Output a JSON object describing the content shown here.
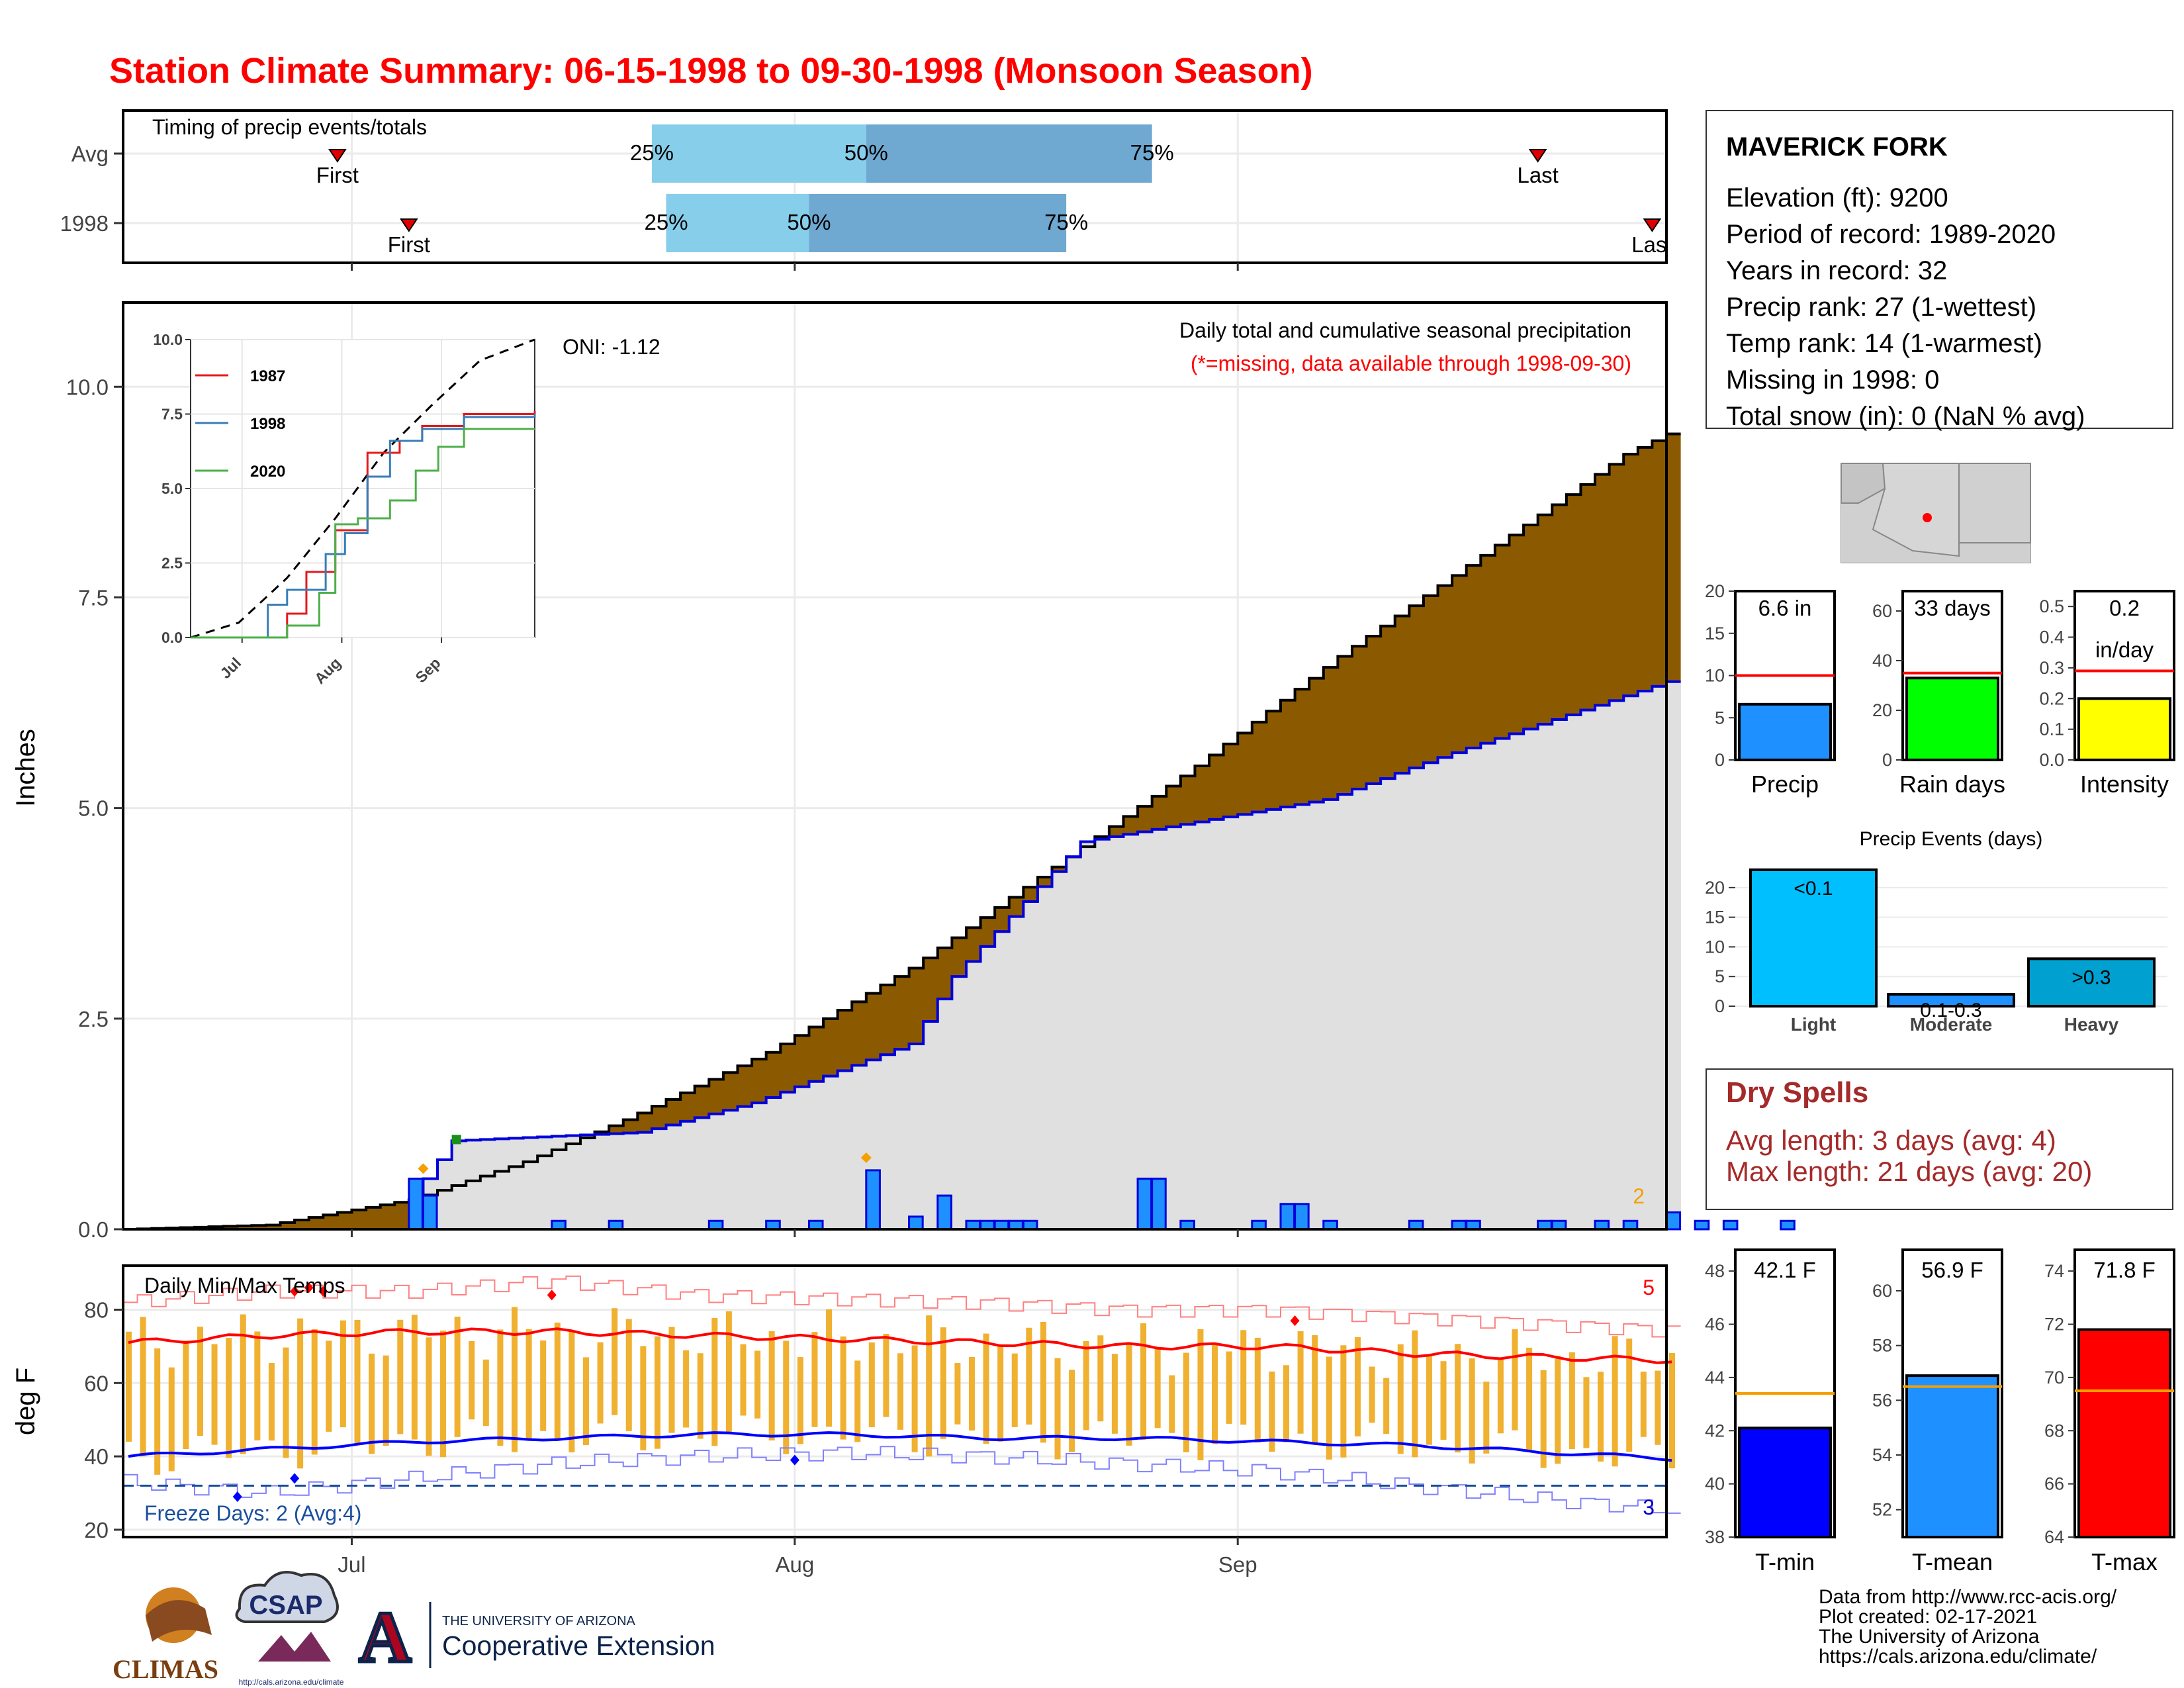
{
  "title": "Station Climate Summary: 06-15-1998 to 09-30-1998 (Monsoon Season)",
  "colors": {
    "title": "#ff0000",
    "brown": "#8b5a00",
    "gray_fill": "#e0e0e0",
    "blue_line": "#0000dd",
    "bar_blue": "#1e90ff",
    "light_blue": "#87ceeb",
    "mid_blue": "#6fa8d0",
    "temp_orange": "#f0b030",
    "max_red": "#ff0000",
    "min_blue": "#0000ff",
    "rain_green": "#00ff00",
    "intensity_yellow": "#ffff00",
    "dry_red": "#a52a2a",
    "light_bar": "#00bfff",
    "heavy_bar": "#00a0d0"
  },
  "timing": {
    "label": "Timing of precip events/totals",
    "rows": [
      {
        "name": "Avg",
        "first": "First",
        "last": "Last",
        "p25": "25%",
        "p50": "50%",
        "p75": "75%",
        "first_date": "1998-06-30",
        "last_date": "1998-09-22",
        "d25": "1998-07-22",
        "d50": "1998-08-06",
        "d75": "1998-08-26"
      },
      {
        "name": "1998",
        "first": "First",
        "last": "Last",
        "p25": "25%",
        "p50": "50%",
        "p75": "75%",
        "first_date": "1998-07-05",
        "last_date": "1998-09-30",
        "d25": "1998-07-23",
        "d50": "1998-08-02",
        "d75": "1998-08-20"
      }
    ]
  },
  "precip_panel": {
    "ylabel": "Inches",
    "oni": "ONI: -1.12",
    "caption": "Daily total and cumulative seasonal precipitation",
    "caption2": "(*=missing, data available through 1998-09-30)",
    "count_label": "2",
    "yticks": [
      "0.0",
      "2.5",
      "5.0",
      "7.5",
      "10.0"
    ]
  },
  "inset": {
    "series": [
      {
        "name": "1987",
        "color": "#e41a1c"
      },
      {
        "name": "1998",
        "color": "#377eb8"
      },
      {
        "name": "2020",
        "color": "#4daf4a"
      }
    ],
    "yticks": [
      "0.0",
      "2.5",
      "5.0",
      "7.5",
      "10.0"
    ],
    "xticks": [
      "Jul",
      "Aug",
      "Sep"
    ]
  },
  "temp_panel": {
    "ylabel": "deg F",
    "title": "Daily Min/Max Temps",
    "freeze": "Freeze Days: 2 (Avg:4)",
    "count_hot": "5",
    "count_cold": "3",
    "yticks": [
      "20",
      "40",
      "60",
      "80"
    ]
  },
  "xaxis": {
    "ticks": [
      "Jul",
      "Aug",
      "Sep"
    ]
  },
  "station": {
    "name": "MAVERICK FORK",
    "lines": [
      "Elevation (ft): 9200",
      "Period of record: 1989-2020",
      "Years in record: 32",
      "Precip rank: 27 (1-wettest)",
      "Temp rank: 14 (1-warmest)",
      "Missing in 1998: 0",
      "Total snow (in): 0 (NaN % avg)"
    ]
  },
  "mini_bars": [
    {
      "label": "Precip",
      "value_label": "6.6 in",
      "value": 6.6,
      "avg": 10,
      "ymax": 20,
      "yticks": [
        "0",
        "5",
        "10",
        "15",
        "20"
      ],
      "tick_vals": [
        0,
        5,
        10,
        15,
        20
      ],
      "color": "#1e90ff"
    },
    {
      "label": "Rain days",
      "value_label": "33 days",
      "value": 33,
      "avg": 35,
      "ymax": 68,
      "yticks": [
        "0",
        "20",
        "40",
        "60"
      ],
      "tick_vals": [
        0,
        20,
        40,
        60
      ],
      "color": "#00ff00"
    },
    {
      "label": "Intensity",
      "value_label": "0.2",
      "value_label2": "in/day",
      "value": 0.2,
      "avg": 0.29,
      "ymax": 0.55,
      "yticks": [
        "0.0",
        "0.1",
        "0.2",
        "0.3",
        "0.4",
        "0.5"
      ],
      "tick_vals": [
        0,
        0.1,
        0.2,
        0.3,
        0.4,
        0.5
      ],
      "color": "#ffff00"
    }
  ],
  "events": {
    "title": "Precip Events (days)",
    "yticks": [
      "0",
      "5",
      "10",
      "15",
      "20"
    ],
    "tick_vals": [
      0,
      5,
      10,
      15,
      20
    ],
    "ymax": 24,
    "bars": [
      {
        "label": "Light",
        "value": 23,
        "value_label": "<0.1",
        "color": "#00bfff"
      },
      {
        "label": "Moderate",
        "value": 2,
        "value_label": "0.1-0.3",
        "color": "#1e90ff"
      },
      {
        "label": "Heavy",
        "value": 8,
        "value_label": ">0.3",
        "color": "#00a0d0"
      }
    ]
  },
  "dry_spells": {
    "title": "Dry Spells",
    "avg": "Avg length: 3 days (avg: 4)",
    "max": "Max length: 21 days (avg: 20)"
  },
  "temp_bars": [
    {
      "label": "T-min",
      "value_label": "42.1 F",
      "value": 42.1,
      "avg": 43.4,
      "ymin": 38,
      "ymax": 48.8,
      "yticks": [
        "38",
        "40",
        "42",
        "44",
        "46",
        "48"
      ],
      "tick_vals": [
        38,
        40,
        42,
        44,
        46,
        48
      ],
      "color": "#0000ff"
    },
    {
      "label": "T-mean",
      "value_label": "56.9 F",
      "value": 56.9,
      "avg": 56.5,
      "ymin": 51,
      "ymax": 61.5,
      "yticks": [
        "52",
        "54",
        "56",
        "58",
        "60"
      ],
      "tick_vals": [
        52,
        54,
        56,
        58,
        60
      ],
      "color": "#1e90ff"
    },
    {
      "label": "T-max",
      "value_label": "71.8 F",
      "value": 71.8,
      "avg": 69.5,
      "ymin": 64,
      "ymax": 74.8,
      "yticks": [
        "64",
        "66",
        "68",
        "70",
        "72",
        "74"
      ],
      "tick_vals": [
        64,
        66,
        68,
        70,
        72,
        74
      ],
      "color": "#ff0000"
    }
  ],
  "footer": {
    "lines": [
      "Data from http://www.rcc-acis.org/",
      "Plot created: 02-17-2021",
      "The University of Arizona",
      "https://cals.arizona.edu/climate/"
    ],
    "logo_climas": "CLIMAS",
    "logo_csap": "CSAP",
    "logo_csap_url": "http://cals.arizona.edu/climate",
    "ua_line1": "THE UNIVERSITY OF ARIZONA",
    "ua_line2": "Cooperative Extension",
    "ua_letter": "A"
  },
  "chart_data": [
    {
      "type": "area",
      "title": "Daily total and cumulative seasonal precipitation",
      "ylabel": "Inches",
      "ylim": [
        0,
        11
      ],
      "start_date": "1998-06-15",
      "end_date": "1998-09-30",
      "series": [
        {
          "name": "average cumulative",
          "points": [
            [
              0,
              0
            ],
            [
              10,
              0.05
            ],
            [
              20,
              0.35
            ],
            [
              28,
              0.8
            ],
            [
              35,
              1.3
            ],
            [
              45,
              2.1
            ],
            [
              55,
              3.1
            ],
            [
              65,
              4.3
            ],
            [
              75,
              5.5
            ],
            [
              85,
              6.8
            ],
            [
              95,
              8.0
            ],
            [
              105,
              9.2
            ],
            [
              115,
              10.0
            ]
          ]
        },
        {
          "name": "1998 cumulative",
          "points": [
            [
              0,
              0
            ],
            [
              20,
              0
            ],
            [
              21,
              0.6
            ],
            [
              23,
              1.05
            ],
            [
              36,
              1.15
            ],
            [
              44,
              1.5
            ],
            [
              55,
              2.2
            ],
            [
              58,
              3.0
            ],
            [
              67,
              4.6
            ],
            [
              84,
              5.1
            ],
            [
              92,
              5.6
            ],
            [
              108,
              6.5
            ],
            [
              115,
              6.6
            ]
          ]
        }
      ],
      "daily_1998": [
        [
          20,
          0.6
        ],
        [
          21,
          0.4
        ],
        [
          30,
          0.1
        ],
        [
          34,
          0.1
        ],
        [
          41,
          0.1
        ],
        [
          45,
          0.1
        ],
        [
          48,
          0.1
        ],
        [
          52,
          0.7
        ],
        [
          55,
          0.15
        ],
        [
          57,
          0.4
        ],
        [
          59,
          0.1
        ],
        [
          60,
          0.1
        ],
        [
          61,
          0.1
        ],
        [
          62,
          0.1
        ],
        [
          63,
          0.1
        ],
        [
          71,
          0.6
        ],
        [
          72,
          0.6
        ],
        [
          74,
          0.1
        ],
        [
          79,
          0.1
        ],
        [
          81,
          0.3
        ],
        [
          82,
          0.3
        ],
        [
          84,
          0.1
        ],
        [
          90,
          0.1
        ],
        [
          93,
          0.1
        ],
        [
          94,
          0.1
        ],
        [
          99,
          0.1
        ],
        [
          100,
          0.1
        ],
        [
          103,
          0.1
        ],
        [
          105,
          0.1
        ],
        [
          108,
          0.2
        ],
        [
          110,
          0.1
        ],
        [
          112,
          0.1
        ],
        [
          116,
          0.1
        ]
      ]
    },
    {
      "type": "line",
      "title": "",
      "ylim": [
        0,
        10
      ],
      "xticks": [
        "Jul",
        "Aug",
        "Sep"
      ],
      "series": [
        {
          "name": "average",
          "points": [
            [
              0,
              0
            ],
            [
              15,
              0.5
            ],
            [
              30,
              2
            ],
            [
              45,
              4
            ],
            [
              60,
              6.2
            ],
            [
              75,
              7.8
            ],
            [
              90,
              9.3
            ],
            [
              107,
              10
            ]
          ]
        },
        {
          "name": "1987",
          "points": [
            [
              0,
              0
            ],
            [
              25,
              0
            ],
            [
              30,
              0.8
            ],
            [
              36,
              2.2
            ],
            [
              45,
              3.6
            ],
            [
              55,
              6.2
            ],
            [
              65,
              6.6
            ],
            [
              72,
              7.1
            ],
            [
              85,
              7.5
            ],
            [
              107,
              7.6
            ]
          ]
        },
        {
          "name": "1998",
          "points": [
            [
              0,
              0
            ],
            [
              22,
              0
            ],
            [
              24,
              1.1
            ],
            [
              30,
              1.6
            ],
            [
              42,
              2.8
            ],
            [
              48,
              3.5
            ],
            [
              55,
              5.4
            ],
            [
              62,
              6.6
            ],
            [
              72,
              7.0
            ],
            [
              85,
              7.4
            ],
            [
              107,
              7.5
            ]
          ]
        },
        {
          "name": "2020",
          "points": [
            [
              0,
              0
            ],
            [
              30,
              0.4
            ],
            [
              40,
              1.5
            ],
            [
              45,
              3.8
            ],
            [
              52,
              4.0
            ],
            [
              62,
              4.6
            ],
            [
              70,
              5.6
            ],
            [
              77,
              6.4
            ],
            [
              85,
              7.0
            ],
            [
              107,
              7.0
            ]
          ]
        }
      ]
    },
    {
      "type": "line",
      "title": "Daily Min/Max Temps",
      "ylabel": "deg F",
      "ylim": [
        18,
        92
      ],
      "freeze_line": 32,
      "avg_max": [
        [
          0,
          71
        ],
        [
          10,
          73
        ],
        [
          20,
          74
        ],
        [
          30,
          74
        ],
        [
          40,
          73
        ],
        [
          50,
          72
        ],
        [
          60,
          71
        ],
        [
          70,
          70
        ],
        [
          80,
          70
        ],
        [
          90,
          68
        ],
        [
          100,
          67
        ],
        [
          110,
          66
        ],
        [
          116,
          64
        ]
      ],
      "avg_min": [
        [
          0,
          40
        ],
        [
          10,
          42
        ],
        [
          20,
          44
        ],
        [
          30,
          45
        ],
        [
          40,
          46
        ],
        [
          50,
          46
        ],
        [
          60,
          45
        ],
        [
          70,
          45
        ],
        [
          80,
          44
        ],
        [
          90,
          43
        ],
        [
          100,
          41
        ],
        [
          110,
          39
        ],
        [
          116,
          37
        ]
      ],
      "record_max": [
        [
          0,
          82
        ],
        [
          10,
          85
        ],
        [
          20,
          85
        ],
        [
          30,
          88
        ],
        [
          40,
          84
        ],
        [
          50,
          83
        ],
        [
          60,
          82
        ],
        [
          70,
          80
        ],
        [
          80,
          80
        ],
        [
          90,
          78
        ],
        [
          100,
          76
        ],
        [
          110,
          74
        ],
        [
          116,
          72
        ]
      ],
      "record_min": [
        [
          0,
          33
        ],
        [
          10,
          30
        ],
        [
          20,
          34
        ],
        [
          30,
          38
        ],
        [
          40,
          40
        ],
        [
          50,
          41
        ],
        [
          60,
          40
        ],
        [
          70,
          38
        ],
        [
          80,
          36
        ],
        [
          90,
          32
        ],
        [
          100,
          28
        ],
        [
          110,
          25
        ],
        [
          116,
          24
        ]
      ]
    },
    {
      "type": "bar",
      "title": "Precip Events (days)",
      "categories": [
        "Light",
        "Moderate",
        "Heavy"
      ],
      "values": [
        23,
        2,
        8
      ]
    }
  ]
}
